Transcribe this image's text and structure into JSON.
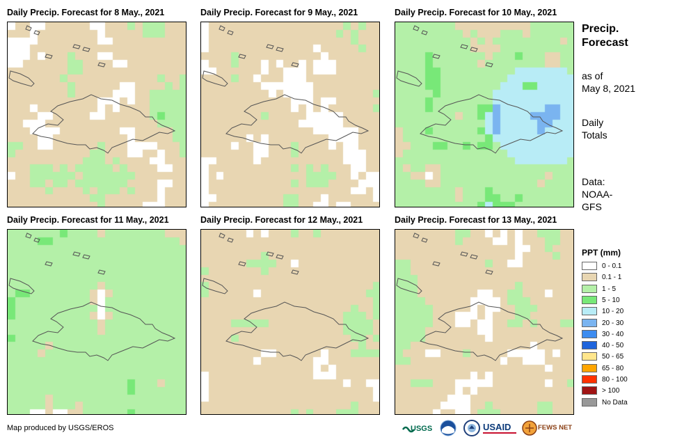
{
  "panels": [
    {
      "title": "Daily Precip. Forecast for 8 May., 2021",
      "seed": 11,
      "bias": [
        0.25,
        0.4,
        0.25,
        0.08,
        0.02
      ]
    },
    {
      "title": "Daily Precip. Forecast for 9 May., 2021",
      "seed": 23,
      "bias": [
        0.3,
        0.42,
        0.22,
        0.05,
        0.01
      ]
    },
    {
      "title": "Daily Precip. Forecast for 10 May., 2021",
      "seed": 37,
      "bias": [
        0.04,
        0.2,
        0.46,
        0.15,
        0.15
      ]
    },
    {
      "title": "Daily Precip. Forecast for 11 May., 2021",
      "seed": 41,
      "bias": [
        0.14,
        0.12,
        0.6,
        0.12,
        0.02
      ]
    },
    {
      "title": "Daily Precip. Forecast for 12 May., 2021",
      "seed": 53,
      "bias": [
        0.18,
        0.46,
        0.34,
        0.015,
        0.005
      ]
    },
    {
      "title": "Daily Precip. Forecast for 13 May., 2021",
      "seed": 67,
      "bias": [
        0.22,
        0.36,
        0.38,
        0.03,
        0.01
      ]
    }
  ],
  "side": {
    "title_line1": "Precip.",
    "title_line2": "Forecast",
    "asof_line1": "as of",
    "asof_line2": "May 8, 2021",
    "totals_line1": "Daily",
    "totals_line2": "Totals",
    "data_line1": "Data:",
    "data_line2": "NOAA-",
    "data_line3": "GFS"
  },
  "legend": {
    "title": "PPT (mm)",
    "items": [
      {
        "label": "0 - 0.1",
        "color": "#ffffff"
      },
      {
        "label": "0.1 - 1",
        "color": "#e8d6b2"
      },
      {
        "label": "1 - 5",
        "color": "#b4f0a8"
      },
      {
        "label": "5 - 10",
        "color": "#78e878"
      },
      {
        "label": "10 - 20",
        "color": "#b8ecf6"
      },
      {
        "label": "20 - 30",
        "color": "#7ab4f0"
      },
      {
        "label": "30 - 40",
        "color": "#3c8cf0"
      },
      {
        "label": "40 - 50",
        "color": "#1e64dc"
      },
      {
        "label": "50 - 65",
        "color": "#ffe68c"
      },
      {
        "label": "65 - 80",
        "color": "#ffa500"
      },
      {
        "label": "80 - 100",
        "color": "#ff3200"
      },
      {
        "label": "> 100",
        "color": "#a01414"
      },
      {
        "label": "No Data",
        "color": "#999999"
      }
    ]
  },
  "credit": "Map produced by USGS/EROS",
  "logos": {
    "usgs": "USGS",
    "usaid": "USAID",
    "fewsnet": "FEWS NET"
  }
}
